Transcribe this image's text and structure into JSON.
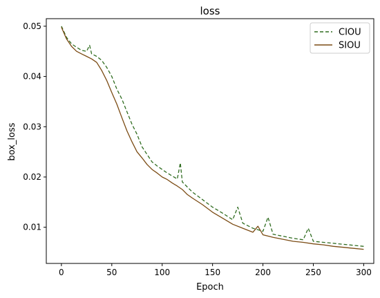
{
  "chart_data": {
    "type": "line",
    "title": "loss",
    "xlabel": "Epoch",
    "ylabel": "box_loss",
    "xlim": [
      -15,
      310
    ],
    "ylim": [
      0.0028,
      0.0515
    ],
    "xticks": [
      0,
      50,
      100,
      150,
      200,
      250,
      300
    ],
    "yticks": [
      0.01,
      0.02,
      0.03,
      0.04,
      0.05
    ],
    "ytick_labels": [
      "0.01",
      "0.02",
      "0.03",
      "0.04",
      "0.05"
    ],
    "grid": false,
    "legend_position": "top-right",
    "series": [
      {
        "name": "CIOU",
        "style": "dashed",
        "color": "#2e6b1e",
        "x": [
          0,
          5,
          10,
          15,
          20,
          25,
          28,
          30,
          35,
          40,
          45,
          50,
          55,
          60,
          65,
          70,
          75,
          80,
          85,
          90,
          95,
          100,
          105,
          110,
          115,
          118,
          120,
          125,
          130,
          140,
          150,
          160,
          170,
          175,
          180,
          190,
          200,
          205,
          210,
          220,
          230,
          240,
          245,
          250,
          260,
          270,
          280,
          290,
          300
        ],
        "y": [
          0.05,
          0.0478,
          0.0465,
          0.0458,
          0.0452,
          0.045,
          0.0462,
          0.0445,
          0.044,
          0.0432,
          0.0418,
          0.04,
          0.0375,
          0.0355,
          0.033,
          0.0305,
          0.0285,
          0.026,
          0.0245,
          0.023,
          0.0222,
          0.0215,
          0.0208,
          0.0202,
          0.0196,
          0.0228,
          0.019,
          0.018,
          0.017,
          0.0155,
          0.014,
          0.0128,
          0.0115,
          0.014,
          0.0108,
          0.0098,
          0.0092,
          0.012,
          0.0086,
          0.0082,
          0.0078,
          0.0075,
          0.0098,
          0.0072,
          0.007,
          0.0068,
          0.0066,
          0.0064,
          0.0062
        ]
      },
      {
        "name": "SIOU",
        "style": "solid",
        "color": "#7a4a12",
        "x": [
          0,
          5,
          10,
          15,
          20,
          25,
          30,
          35,
          40,
          45,
          50,
          55,
          60,
          65,
          70,
          75,
          80,
          85,
          90,
          95,
          100,
          105,
          110,
          115,
          120,
          125,
          130,
          140,
          150,
          160,
          170,
          180,
          190,
          195,
          200,
          210,
          220,
          230,
          240,
          250,
          260,
          270,
          280,
          290,
          300
        ],
        "y": [
          0.0498,
          0.0475,
          0.046,
          0.045,
          0.0445,
          0.044,
          0.0435,
          0.0428,
          0.0412,
          0.0392,
          0.0368,
          0.0345,
          0.0318,
          0.0292,
          0.027,
          0.025,
          0.0238,
          0.0225,
          0.0215,
          0.0208,
          0.02,
          0.0195,
          0.0188,
          0.0182,
          0.0175,
          0.0165,
          0.0158,
          0.0145,
          0.013,
          0.0118,
          0.0106,
          0.0098,
          0.009,
          0.0102,
          0.0085,
          0.008,
          0.0076,
          0.0072,
          0.007,
          0.0067,
          0.0065,
          0.0062,
          0.006,
          0.0058,
          0.0056
        ]
      }
    ]
  }
}
